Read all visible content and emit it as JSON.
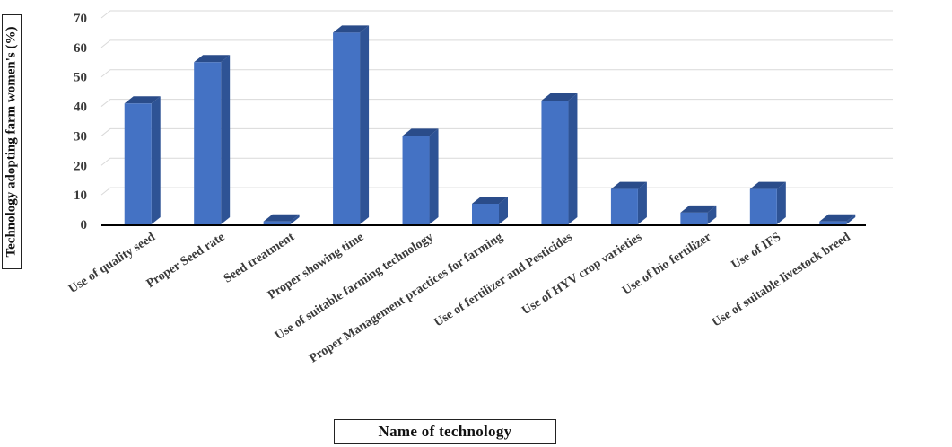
{
  "chart_data": {
    "type": "bar",
    "title": "",
    "xlabel": "Name of technology",
    "ylabel": "Technology adopting farm women's (%)",
    "categories": [
      "Use of quality seed",
      "Proper Seed rate",
      "Seed treatment",
      "Proper showing time",
      "Use of suitable farming technology",
      "Proper Management practices for farming",
      "Use of fertilizer and Pesticides",
      "Use of HYV  crop varieties",
      "Use of bio fertilizer",
      "Use of IFS",
      "Use of suitable livestock breed"
    ],
    "values": [
      41,
      55,
      1,
      65,
      30,
      7,
      42,
      12,
      4,
      12,
      1
    ],
    "ylim": [
      0,
      70
    ],
    "yticks": [
      "0",
      "10",
      "20",
      "30",
      "40",
      "50",
      "60",
      "70"
    ],
    "grid": true,
    "legend": "none",
    "bar_style": "3d-column",
    "colors": {
      "bar_front": "#4472c4",
      "bar_side": "#2e5395",
      "bar_top": "#2a4c8a",
      "grid": "#d9d9d9",
      "axis": "#000000"
    }
  }
}
